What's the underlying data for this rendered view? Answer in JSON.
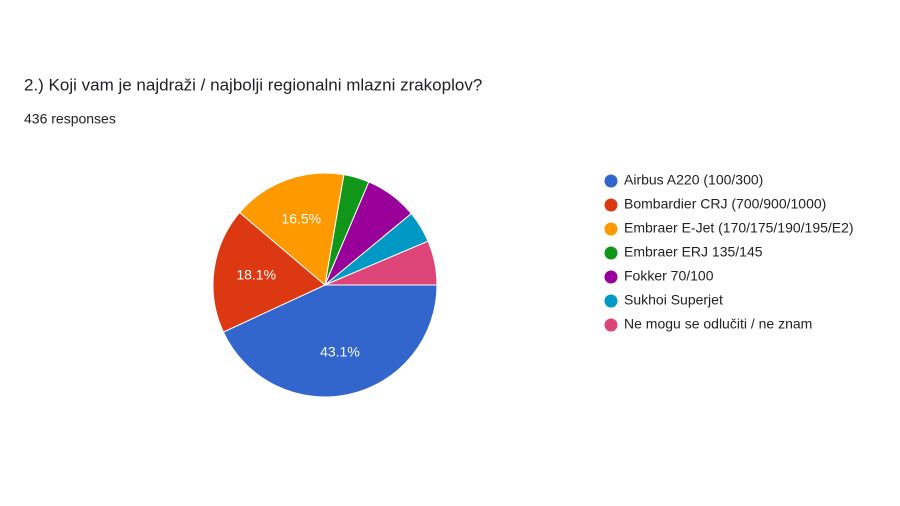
{
  "chart_data": {
    "type": "pie",
    "title": "2.) Koji vam je najdraži / najbolji regionalni mlazni zrakoplov?",
    "subtitle": "436 responses",
    "categories": [
      "Airbus A220 (100/300)",
      "Bombardier CRJ (700/900/1000)",
      "Embraer E-Jet (170/175/190/195/E2)",
      "Embraer ERJ 135/145",
      "Fokker 70/100",
      "Sukhoi Superjet",
      "Ne mogu se odlučiti / ne znam"
    ],
    "values": [
      43.1,
      18.1,
      16.5,
      3.7,
      7.6,
      4.6,
      6.4
    ],
    "value_labels": [
      "43.1%",
      "18.1%",
      "16.5%",
      null,
      null,
      null,
      null
    ],
    "colors": [
      "#3366cc",
      "#dc3912",
      "#ff9900",
      "#109618",
      "#990099",
      "#0099c6",
      "#dd4477"
    ],
    "legend": "right"
  }
}
